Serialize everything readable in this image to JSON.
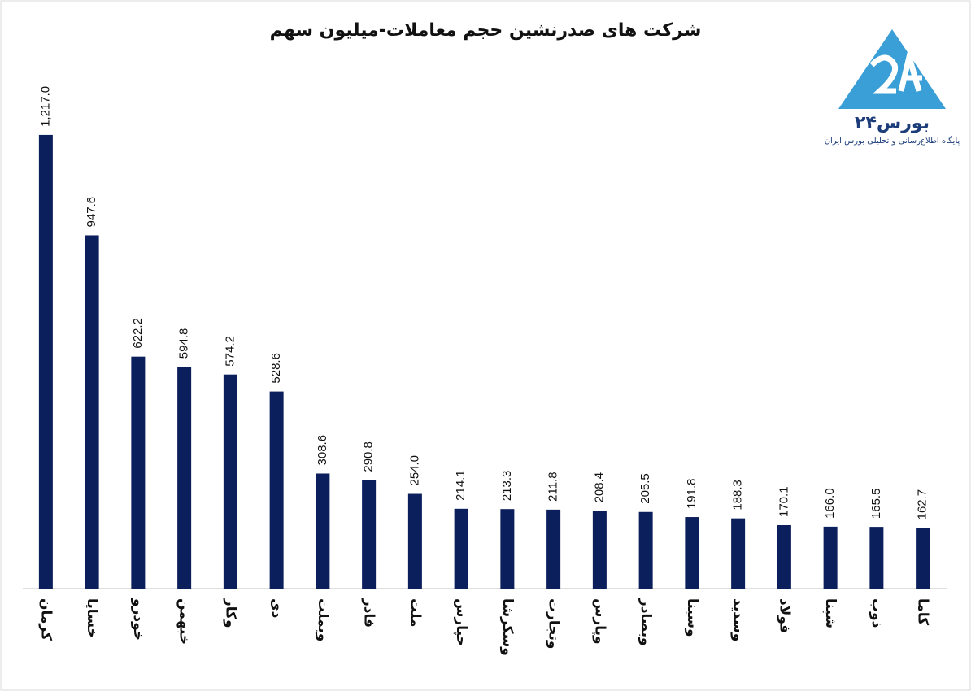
{
  "chart_data": {
    "type": "bar",
    "title": "شرکت های صدرنشین حجم معاملات-میلیون سهم",
    "categories": [
      "کرمان",
      "خساپا",
      "خودرو",
      "خبهمن",
      "وکار",
      "دی",
      "وبملت",
      "فادر",
      "ملت",
      "خپارس",
      "وسکرشا",
      "وتجارت",
      "وپارس",
      "وبصادر",
      "وسینا",
      "وسدید",
      "فولاد",
      "شپنا",
      "ذوب",
      "کاما"
    ],
    "values": [
      1217.0,
      947.6,
      622.2,
      594.8,
      574.2,
      528.6,
      308.6,
      290.8,
      254.0,
      214.1,
      213.3,
      211.8,
      208.4,
      205.5,
      191.8,
      188.3,
      170.1,
      166.0,
      165.5,
      162.7
    ],
    "value_labels": [
      "1,217.0",
      "947.6",
      "622.2",
      "594.8",
      "574.2",
      "528.6",
      "308.6",
      "290.8",
      "254.0",
      "214.1",
      "213.3",
      "211.8",
      "208.4",
      "205.5",
      "191.8",
      "188.3",
      "170.1",
      "166.0",
      "165.5",
      "162.7"
    ],
    "color": "#0b1f5c",
    "ylim": [
      0,
      1400
    ]
  },
  "logo": {
    "name": "بورس۲۴",
    "tagline": "پایگاه اطلاع‌رسانی و تحلیلی بورس ایران"
  }
}
